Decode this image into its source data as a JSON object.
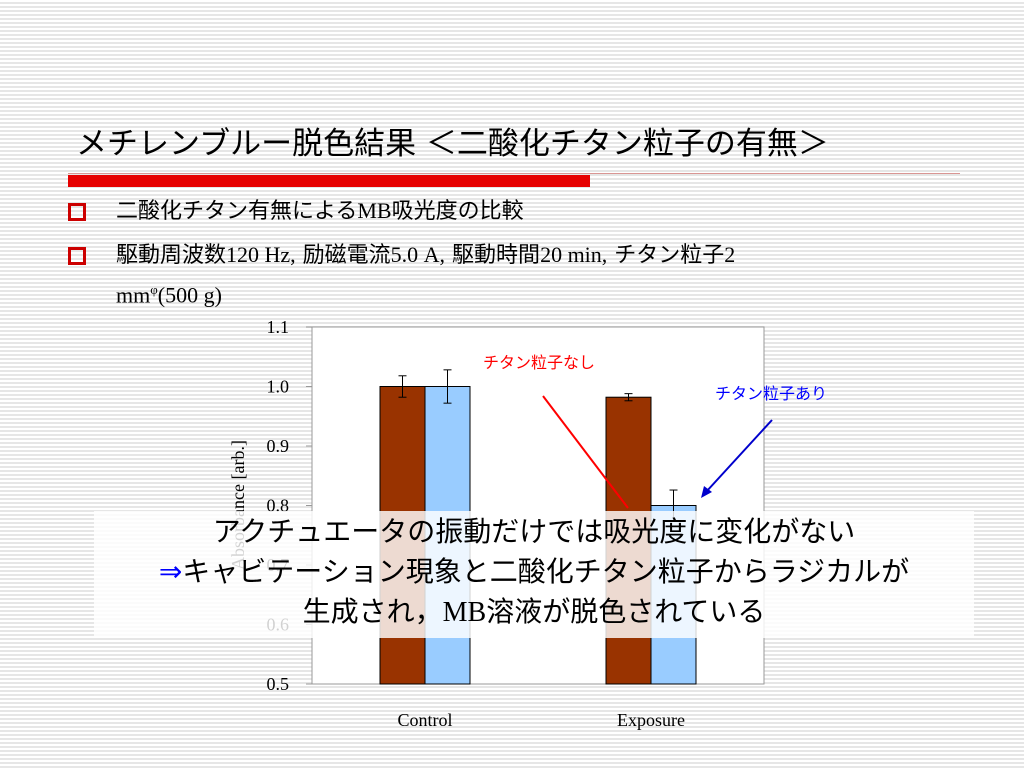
{
  "slide": {
    "title": "メチレンブルー脱色結果 ＜二酸化チタン粒子の有無＞",
    "bullets": [
      {
        "parts": [
          "二酸化チタン有無による",
          "MB",
          "吸光度の比較"
        ]
      },
      {
        "parts": [
          "駆動周波数",
          "120 Hz,",
          " 励磁電流",
          "5.0 A,",
          " 駆動時間",
          "20 min,",
          " チタン粒子",
          "2",
          "mm",
          "φ",
          "(500 g)"
        ]
      }
    ],
    "overlay": {
      "line1": "アクチュエータの振動だけでは吸光度に変化がない",
      "line2_arrow": "⇒",
      "line2": "キャビテーション現象と二酸化チタン粒子からラジカルが",
      "line3a": "生成され，",
      "line3b": "MB",
      "line3c": "溶液が脱色されている"
    },
    "colors": {
      "bullet_marker": "#cc0000",
      "title_bar": "#e60000",
      "overlay_arrow": "#0000ff"
    }
  },
  "chart_data": {
    "type": "bar",
    "categories": [
      "Control",
      "Exposure"
    ],
    "series": [
      {
        "values": [
          1.0,
          0.982
        ],
        "errors": [
          0.018,
          0.006
        ],
        "color": "#993300"
      },
      {
        "values": [
          1.0,
          0.8
        ],
        "errors": [
          0.028,
          0.026
        ],
        "color": "#99ccff"
      }
    ],
    "ylabel": "Absorbance [arb.]",
    "ylim": [
      0.5,
      1.1
    ],
    "yticks": [
      "0.5",
      "0.6",
      "0.7",
      "0.8",
      "0.9",
      "1.0",
      "1.1"
    ],
    "grid": false,
    "annotations": [
      {
        "text": "チタン粒子なし",
        "color": "#ff0000",
        "points_to": {
          "category": 1,
          "series": 0,
          "value": 0.8
        }
      },
      {
        "text": "チタン粒子あり",
        "color": "#0000ff",
        "points_to": {
          "category": 1,
          "series": 1,
          "value": 0.8
        }
      }
    ]
  }
}
